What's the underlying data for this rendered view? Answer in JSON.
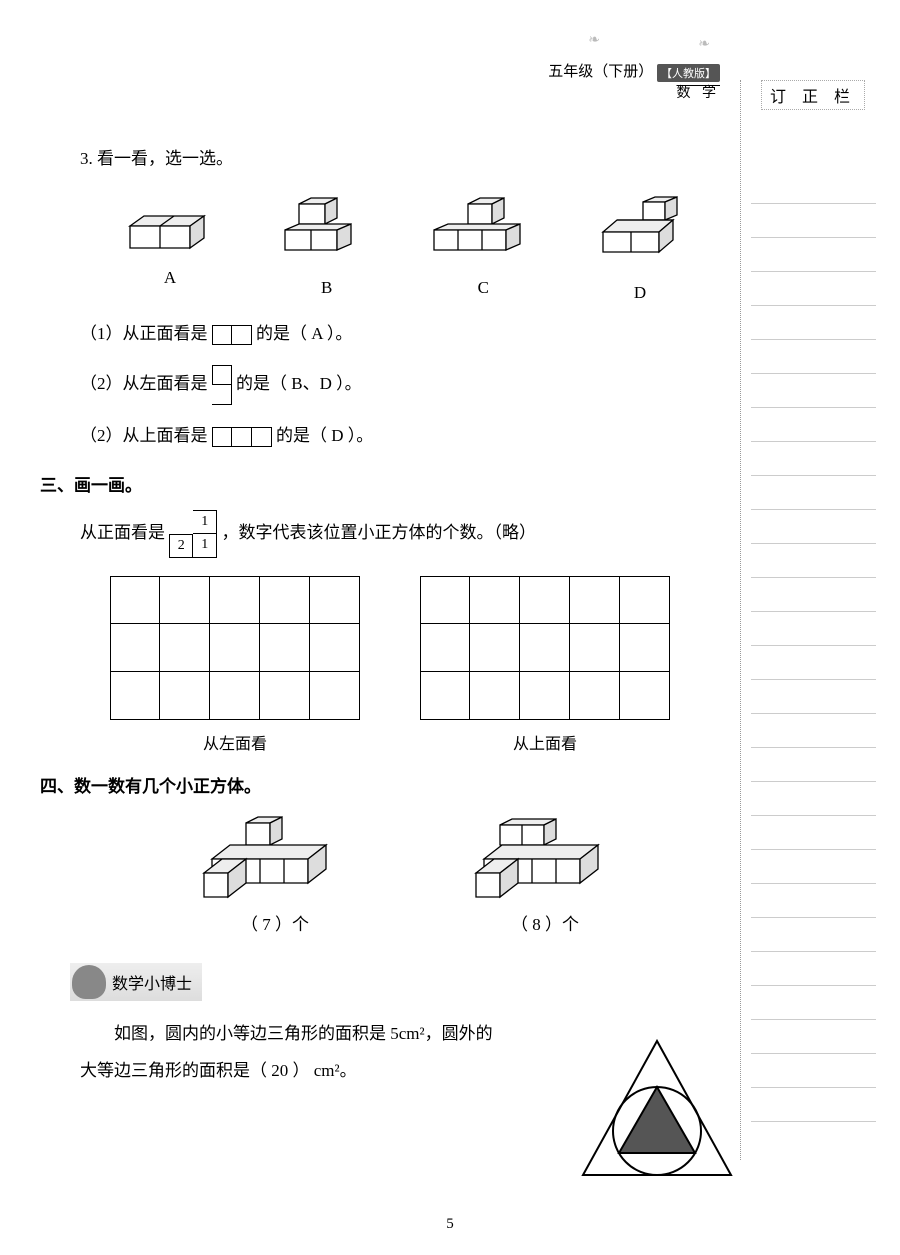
{
  "header": {
    "grade": "五年级（下册）",
    "badge": "【人教版】",
    "subject": "数 学"
  },
  "sidebar": {
    "title": "订 正 栏",
    "line_count": 28,
    "line_color": "#cccccc"
  },
  "q3": {
    "title": "3. 看一看，选一选。",
    "options": [
      "A",
      "B",
      "C",
      "D"
    ],
    "subs": [
      {
        "prefix": "（1）从正面看是",
        "suffix": "的是（ A ）。",
        "box_pattern": "hh"
      },
      {
        "prefix": "（2）从左面看是",
        "suffix": "的是（ B、D ）。",
        "box_pattern": "v"
      },
      {
        "prefix": "（2）从上面看是",
        "suffix": "的是（ D ）。",
        "box_pattern": "hhh"
      }
    ]
  },
  "sec3": {
    "title": "三、画一画。",
    "line_prefix": "从正面看是",
    "line_suffix": "，数字代表该位置小正方体的个数。（略）",
    "stack": [
      [
        "",
        "1"
      ],
      [
        "2",
        "1"
      ]
    ],
    "grids": [
      {
        "label": "从左面看",
        "cols": 5,
        "rows": 3
      },
      {
        "label": "从上面看",
        "cols": 5,
        "rows": 3
      }
    ]
  },
  "sec4": {
    "title": "四、数一数有几个小正方体。",
    "items": [
      {
        "answer": "（ 7 ）个"
      },
      {
        "answer": "（ 8 ）个"
      }
    ]
  },
  "doctor": {
    "badge": "数学小博士",
    "para1": "如图，圆内的小等边三角形的面积是 5cm²，圆外的",
    "para2": "大等边三角形的面积是（ 20 ） cm²。"
  },
  "page_number": "5",
  "colors": {
    "text": "#000000",
    "bg": "#ffffff",
    "rule": "#cccccc",
    "dot": "#999999"
  },
  "cube_stroke": "#000000",
  "cube_fill_top": "#ffffff",
  "cube_fill_side": "#e8e8e8",
  "cube_fill_front": "#f7f7f7"
}
